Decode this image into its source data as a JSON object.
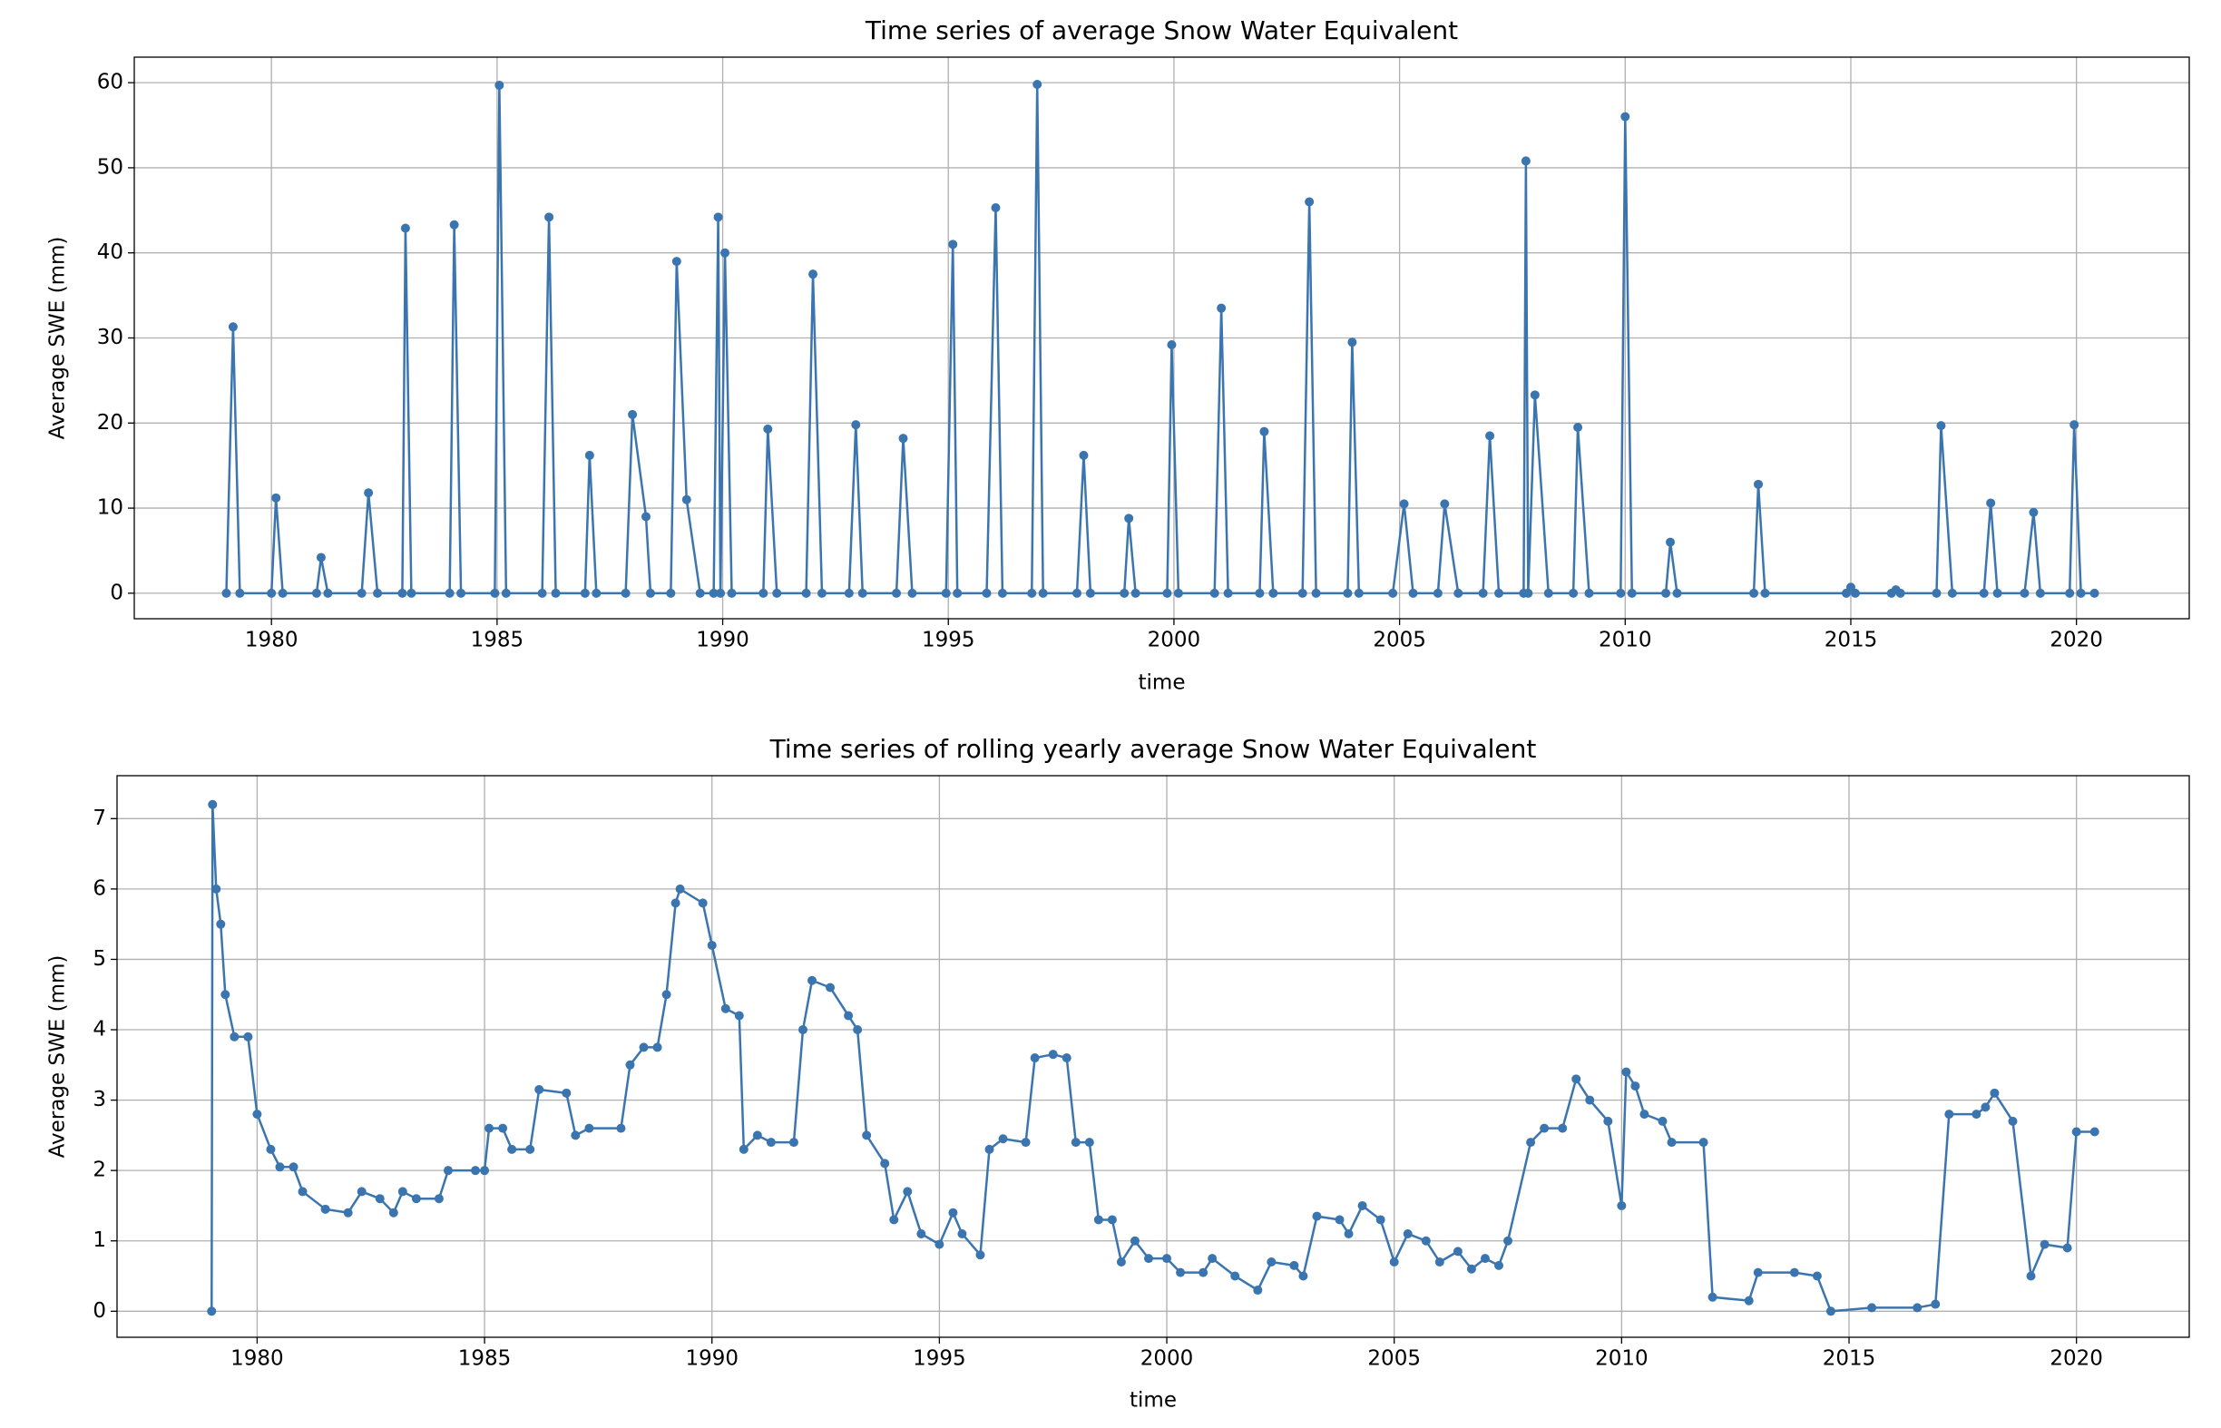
{
  "chart_data": [
    {
      "type": "line",
      "title": "Time series of average Snow Water Equivalent",
      "xlabel": "time",
      "ylabel": "Average SWE (mm)",
      "color": "#3b75af",
      "grid": true,
      "markers": true,
      "xlim": [
        1976.96,
        2022.5
      ],
      "ylim": [
        -3,
        63
      ],
      "xticks": [
        1980,
        1985,
        1990,
        1995,
        2000,
        2005,
        2010,
        2015,
        2020
      ],
      "yticks": [
        0,
        10,
        20,
        30,
        40,
        50,
        60
      ],
      "x": [
        1979.0,
        1979.15,
        1979.3,
        1980.0,
        1980.1,
        1980.25,
        1981.0,
        1981.1,
        1981.25,
        1982.0,
        1982.15,
        1982.35,
        1982.9,
        1982.97,
        1983.1,
        1983.95,
        1984.05,
        1984.2,
        1984.95,
        1985.05,
        1985.2,
        1986.0,
        1986.15,
        1986.3,
        1986.95,
        1987.05,
        1987.2,
        1987.85,
        1988.0,
        1988.3,
        1988.4,
        1988.85,
        1988.98,
        1989.2,
        1989.5,
        1989.8,
        1989.9,
        1989.95,
        1990.05,
        1990.2,
        1990.9,
        1991.0,
        1991.2,
        1991.85,
        1992.0,
        1992.2,
        1992.8,
        1992.95,
        1993.1,
        1993.85,
        1994.0,
        1994.2,
        1994.95,
        1995.1,
        1995.2,
        1995.85,
        1996.05,
        1996.2,
        1996.85,
        1996.97,
        1997.1,
        1997.85,
        1998.0,
        1998.15,
        1998.9,
        1999.0,
        1999.15,
        1999.85,
        1999.95,
        2000.1,
        2000.9,
        2001.05,
        2001.2,
        2001.9,
        2002.0,
        2002.2,
        2002.85,
        2003.0,
        2003.15,
        2003.85,
        2003.95,
        2004.1,
        2004.85,
        2005.1,
        2005.3,
        2005.85,
        2006.0,
        2006.3,
        2006.85,
        2007.0,
        2007.2,
        2007.75,
        2007.8,
        2007.85,
        2008.0,
        2008.3,
        2008.85,
        2008.95,
        2009.2,
        2009.9,
        2010.0,
        2010.15,
        2010.9,
        2011.0,
        2011.15,
        2012.85,
        2012.95,
        2013.1,
        2014.9,
        2015.0,
        2015.1,
        2015.9,
        2016.0,
        2016.1,
        2016.9,
        2017.0,
        2017.25,
        2017.95,
        2018.1,
        2018.25,
        2018.85,
        2019.05,
        2019.2,
        2019.85,
        2019.95,
        2020.1,
        2020.4
      ],
      "values": [
        0,
        31.3,
        0,
        0,
        11.2,
        0,
        0,
        4.2,
        0,
        0,
        11.8,
        0,
        0,
        42.9,
        0,
        0,
        43.3,
        0,
        0,
        59.7,
        0,
        0,
        44.2,
        0,
        0,
        16.2,
        0,
        0,
        21,
        9,
        0,
        0,
        39,
        11,
        0,
        0,
        44.2,
        0,
        40,
        0,
        0,
        19.3,
        0,
        0,
        37.5,
        0,
        0,
        19.8,
        0,
        0,
        18.2,
        0,
        0,
        41,
        0,
        0,
        45.3,
        0,
        0,
        59.8,
        0,
        0,
        16.2,
        0,
        0,
        8.8,
        0,
        0,
        29.2,
        0,
        0,
        33.5,
        0,
        0,
        19,
        0,
        0,
        46,
        0,
        0,
        29.5,
        0,
        0,
        10.5,
        0,
        0,
        10.5,
        0,
        0,
        18.5,
        0,
        0,
        50.8,
        0,
        23.3,
        0,
        0,
        19.5,
        0,
        0,
        56,
        0,
        0,
        6,
        0,
        0,
        12.8,
        0,
        0,
        0.7,
        0,
        0,
        0.4,
        0,
        0,
        19.7,
        0,
        0,
        10.6,
        0,
        0,
        9.5,
        0,
        0,
        19.8,
        0,
        0
      ]
    },
    {
      "type": "line",
      "title": "Time series of rolling yearly average Snow Water Equivalent",
      "xlabel": "time",
      "ylabel": "Average SWE (mm)",
      "color": "#3b75af",
      "grid": true,
      "markers": true,
      "xlim": [
        1976.92,
        2022.48
      ],
      "ylim": [
        -0.37,
        7.61
      ],
      "xticks": [
        1980,
        1985,
        1990,
        1995,
        2000,
        2005,
        2010,
        2015,
        2020
      ],
      "yticks": [
        0,
        1,
        2,
        3,
        4,
        5,
        6,
        7
      ],
      "x": [
        1979.0,
        1979.02,
        1979.1,
        1979.2,
        1979.3,
        1979.5,
        1979.8,
        1980.0,
        1980.3,
        1980.5,
        1980.8,
        1981.0,
        1981.5,
        1982.0,
        1982.3,
        1982.7,
        1983.0,
        1983.2,
        1983.5,
        1984.0,
        1984.2,
        1984.8,
        1985.0,
        1985.1,
        1985.4,
        1985.6,
        1986.0,
        1986.2,
        1986.8,
        1987.0,
        1987.3,
        1988.0,
        1988.2,
        1988.5,
        1988.8,
        1989.0,
        1989.2,
        1989.3,
        1989.8,
        1990.0,
        1990.3,
        1990.6,
        1990.7,
        1991.0,
        1991.3,
        1991.8,
        1992.0,
        1992.2,
        1992.6,
        1993.0,
        1993.2,
        1993.4,
        1993.8,
        1994.0,
        1994.3,
        1994.6,
        1995.0,
        1995.3,
        1995.5,
        1995.9,
        1996.1,
        1996.4,
        1996.9,
        1997.1,
        1997.5,
        1997.8,
        1998.0,
        1998.3,
        1998.5,
        1998.8,
        1999.0,
        1999.3,
        1999.6,
        2000.0,
        2000.3,
        2000.8,
        2001.0,
        2001.5,
        2002.0,
        2002.3,
        2002.8,
        2003.0,
        2003.3,
        2003.8,
        2004.0,
        2004.3,
        2004.7,
        2005.0,
        2005.3,
        2005.7,
        2006.0,
        2006.4,
        2006.7,
        2007.0,
        2007.3,
        2007.5,
        2008.0,
        2008.3,
        2008.7,
        2009.0,
        2009.3,
        2009.7,
        2010.0,
        2010.1,
        2010.3,
        2010.5,
        2010.9,
        2011.1,
        2011.8,
        2012.0,
        2012.8,
        2013.0,
        2013.8,
        2014.3,
        2014.6,
        2015.5,
        2016.5,
        2016.9,
        2017.2,
        2017.8,
        2018.0,
        2018.2,
        2018.6,
        2019.0,
        2019.3,
        2019.8,
        2020.0,
        2020.4
      ],
      "values": [
        0,
        7.2,
        6,
        5.5,
        4.5,
        3.9,
        3.9,
        2.8,
        2.3,
        2.05,
        2.05,
        1.7,
        1.45,
        1.4,
        1.7,
        1.6,
        1.4,
        1.7,
        1.6,
        1.6,
        2.0,
        2.0,
        2.0,
        2.6,
        2.6,
        2.3,
        2.3,
        3.15,
        3.1,
        2.5,
        2.6,
        2.6,
        3.5,
        3.75,
        3.75,
        4.5,
        5.8,
        6.0,
        5.8,
        5.2,
        4.3,
        4.2,
        2.3,
        2.5,
        2.4,
        2.4,
        4.0,
        4.7,
        4.6,
        4.2,
        4.0,
        2.5,
        2.1,
        1.3,
        1.7,
        1.1,
        0.95,
        1.4,
        1.1,
        0.8,
        2.3,
        2.45,
        2.4,
        3.6,
        3.65,
        3.6,
        2.4,
        2.4,
        1.3,
        1.3,
        0.7,
        1.0,
        0.75,
        0.75,
        0.55,
        0.55,
        0.75,
        0.5,
        0.3,
        0.7,
        0.65,
        0.5,
        1.35,
        1.3,
        1.1,
        1.5,
        1.3,
        0.7,
        1.1,
        1.0,
        0.7,
        0.85,
        0.6,
        0.75,
        0.65,
        1.0,
        2.4,
        2.6,
        2.6,
        3.3,
        3.0,
        2.7,
        1.5,
        3.4,
        3.2,
        2.8,
        2.7,
        2.4,
        2.4,
        0.2,
        0.15,
        0.55,
        0.55,
        0.5,
        0.0,
        0.05,
        0.05,
        0.1,
        2.8,
        2.8,
        2.9,
        3.1,
        2.7,
        0.5,
        0.95,
        0.9,
        2.55,
        2.55
      ]
    }
  ]
}
